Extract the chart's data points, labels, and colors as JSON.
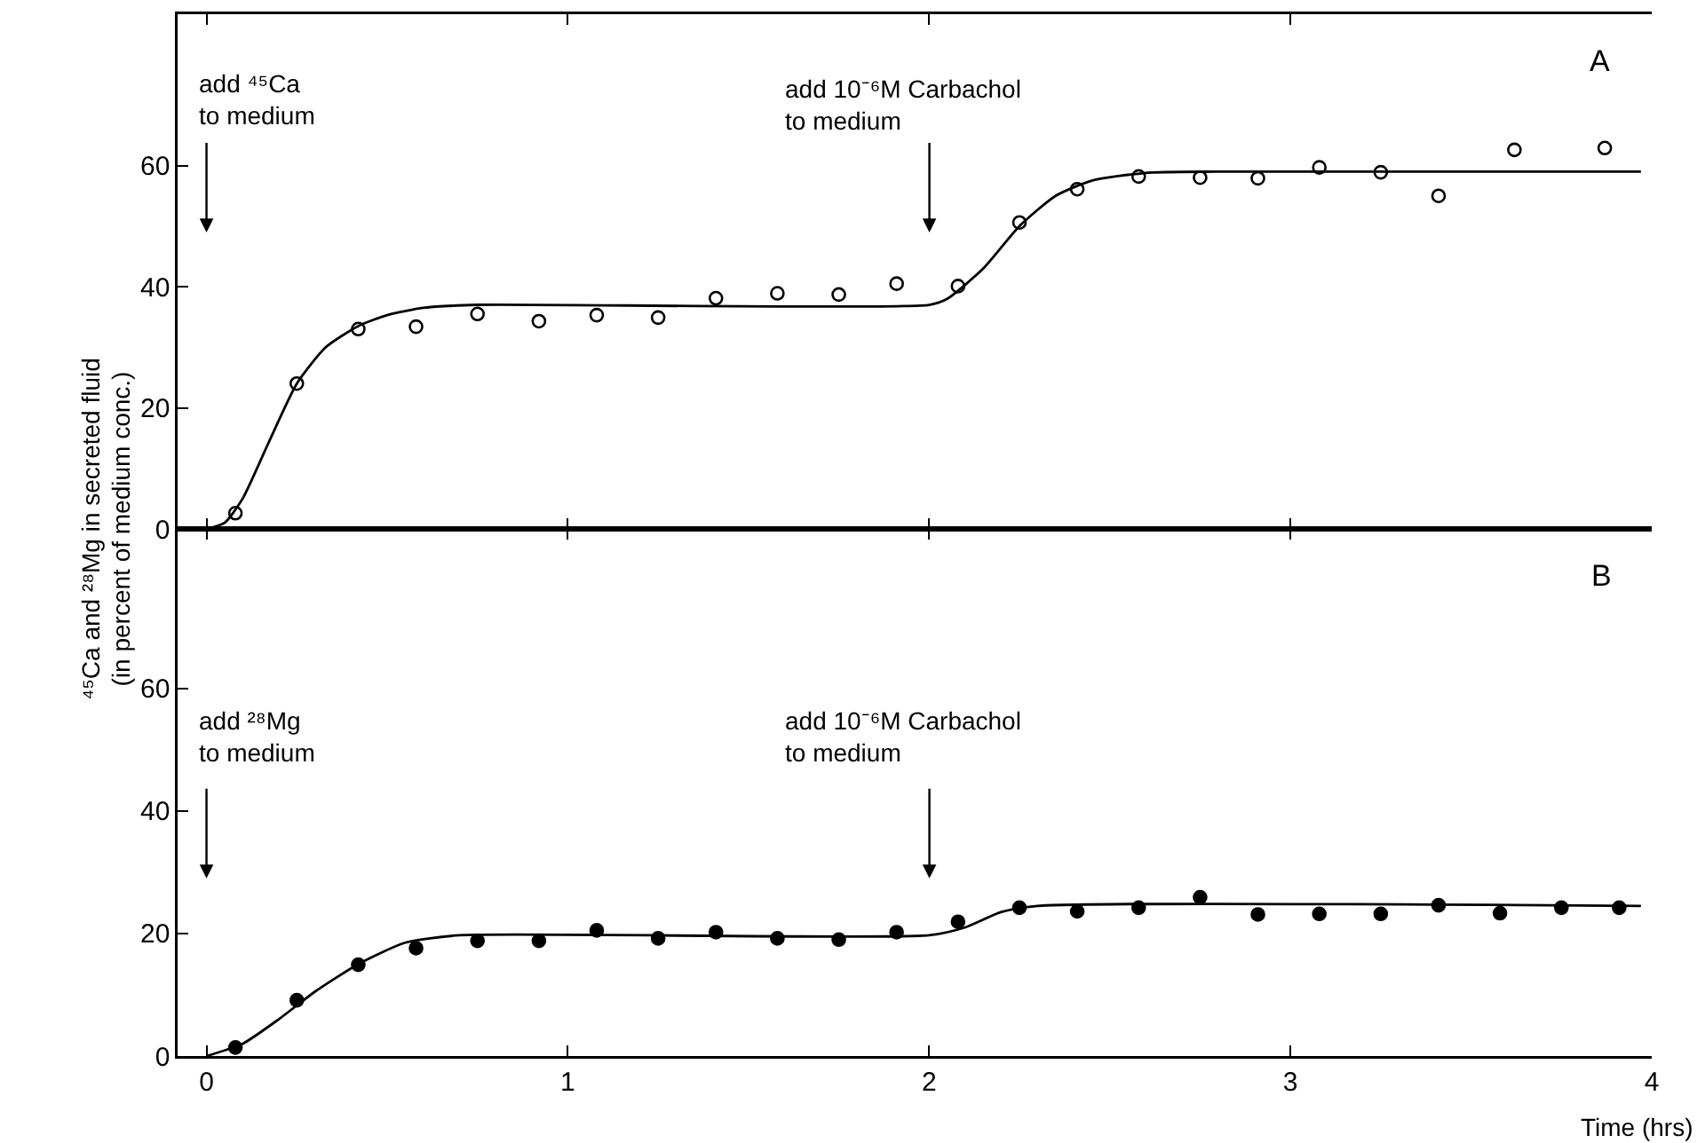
{
  "chart_data": [
    {
      "type": "scatter",
      "ylabel": "⁴⁵Ca and ²⁸Mg in secreted fluid\n(in percent of medium conc.)",
      "xlim": [
        -0.08,
        4.0
      ],
      "xticks": [
        0,
        1,
        2,
        3,
        4
      ],
      "ylim": [
        0,
        85
      ],
      "yticks": [
        0,
        20,
        40,
        60
      ],
      "tick_labels": "y",
      "line_style": "solid",
      "annotations": [
        "add ⁴⁵Ca\nto medium",
        "add 10⁻⁶M Carbachol\nto medium",
        "A"
      ],
      "series": [
        {
          "type": "scatter",
          "marker": "circle",
          "color": "#000000",
          "x": [
            0.08,
            0.25,
            0.42,
            0.58,
            0.75,
            0.92,
            1.08,
            1.25,
            1.41,
            1.58,
            1.75,
            1.91,
            2.08,
            2.25,
            2.41,
            2.58,
            2.75,
            2.91,
            3.08,
            3.25,
            3.41,
            3.62,
            3.87
          ],
          "values": [
            2.6,
            24,
            33,
            33.4,
            35.5,
            34.3,
            35.3,
            34.9,
            38.1,
            38.9,
            38.7,
            40.5,
            40.1,
            50.6,
            56.1,
            58.2,
            58,
            57.9,
            59.7,
            58.9,
            55,
            62.6,
            62.9
          ]
        },
        {
          "type": "line",
          "marker": "none",
          "color": "#000000",
          "x": [
            0,
            0.05,
            0.1,
            0.17,
            0.25,
            0.33,
            0.42,
            0.5,
            0.6,
            0.75,
            2.0,
            2.05,
            2.15,
            2.25,
            2.35,
            2.45,
            2.6,
            2.8,
            3.97
          ],
          "values": [
            0,
            1,
            5,
            14,
            24,
            30,
            33.5,
            35.3,
            36.5,
            37,
            37,
            38,
            43,
            50,
            55,
            57.5,
            58.8,
            59,
            59
          ]
        }
      ]
    },
    {
      "type": "scatter",
      "xlabel": "Time (hrs)",
      "xlim": [
        -0.08,
        4.0
      ],
      "xticks": [
        0,
        1,
        2,
        3,
        4
      ],
      "ylim": [
        0,
        86
      ],
      "yticks": [
        0,
        20,
        40,
        60
      ],
      "line_style": "solid",
      "annotations": [
        "add ²⁸Mg\nto medium",
        "add 10⁻⁶M Carbachol\nto medium",
        "B"
      ],
      "series": [
        {
          "type": "scatter",
          "marker": "circle",
          "color": "#000000",
          "x": [
            0.08,
            0.25,
            0.42,
            0.58,
            0.75,
            0.92,
            1.08,
            1.25,
            1.41,
            1.58,
            1.75,
            1.91,
            2.08,
            2.25,
            2.41,
            2.58,
            2.75,
            2.91,
            3.08,
            3.25,
            3.41,
            3.58,
            3.75,
            3.91
          ],
          "values": [
            1.4,
            9.1,
            14.9,
            17.6,
            18.8,
            18.8,
            20.5,
            19.2,
            20.2,
            19.2,
            19,
            20.2,
            21.9,
            24.2,
            23.6,
            24.2,
            25.9,
            23.1,
            23.2,
            23.2,
            24.6,
            23.3,
            24.2,
            24.2
          ]
        },
        {
          "type": "line",
          "marker": "none",
          "color": "#000000",
          "x": [
            0,
            0.1,
            0.2,
            0.3,
            0.42,
            0.55,
            0.7,
            2.0,
            2.1,
            2.2,
            2.3,
            3.97
          ],
          "values": [
            0,
            2,
            6,
            10.5,
            15,
            18.5,
            19.7,
            19.7,
            21,
            23.5,
            24.5,
            24.5
          ]
        }
      ]
    }
  ]
}
